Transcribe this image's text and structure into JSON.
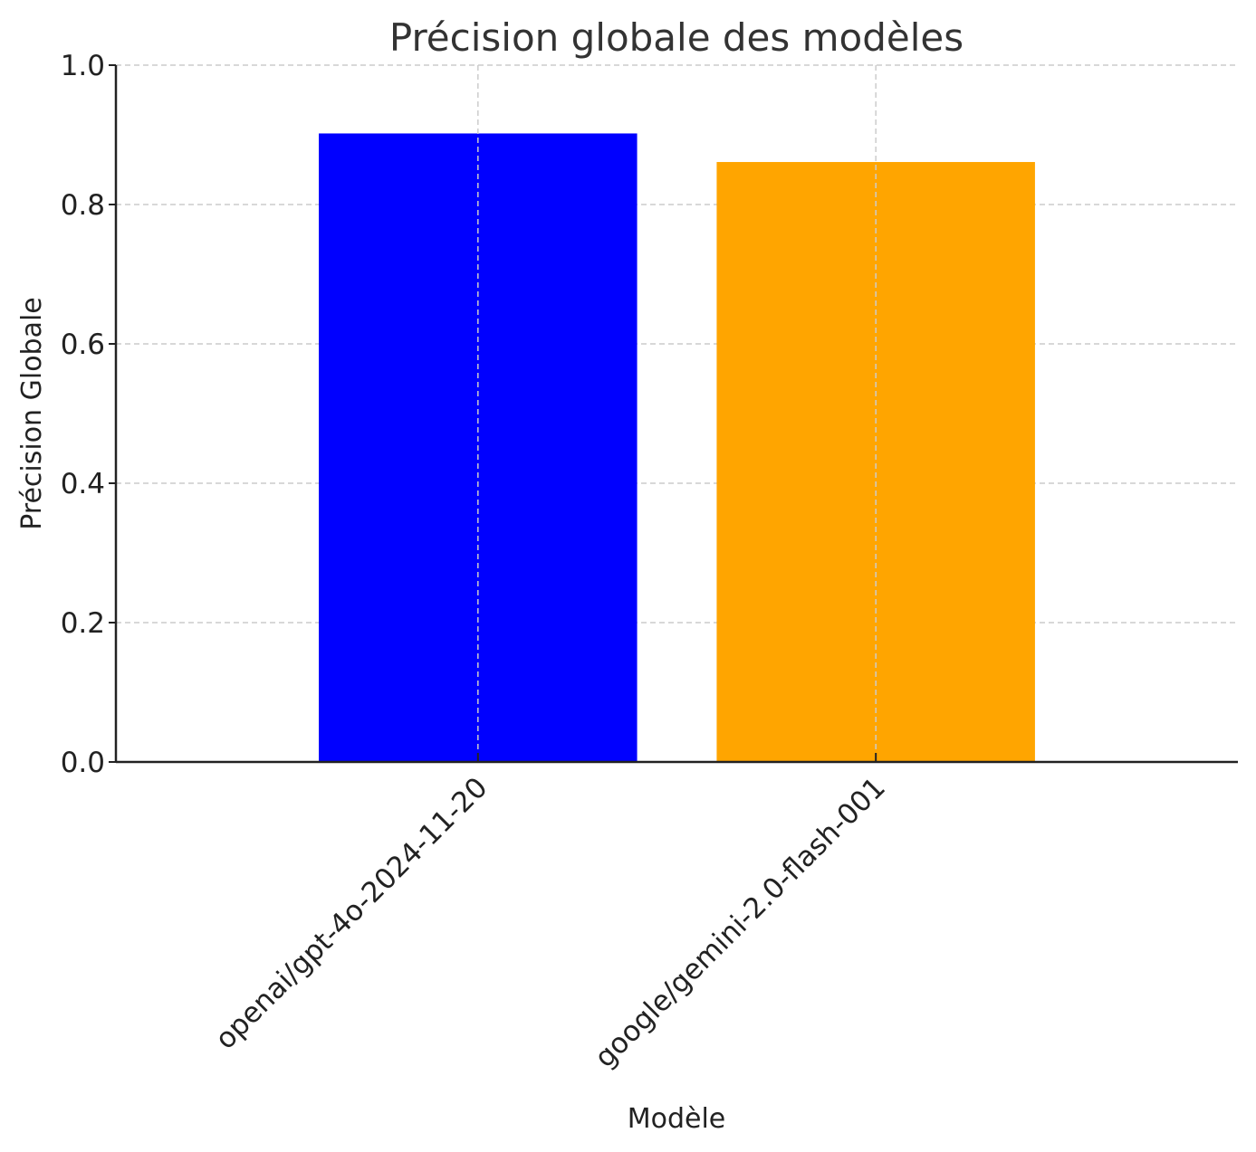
{
  "chart_data": {
    "type": "bar",
    "title": "Précision globale des modèles",
    "xlabel": "Modèle",
    "ylabel": "Précision Globale",
    "categories": [
      "openai/gpt-4o-2024-11-20",
      "google/gemini-2.0-flash-001"
    ],
    "values": [
      0.902,
      0.861
    ],
    "colors": [
      "#0000ff",
      "#ffa500"
    ],
    "ylim": [
      0,
      1.0
    ],
    "yticks": [
      "0.0",
      "0.2",
      "0.4",
      "0.6",
      "0.8",
      "1.0"
    ],
    "grid": true,
    "grid_style": "dashed",
    "xtick_rotation": -45
  }
}
